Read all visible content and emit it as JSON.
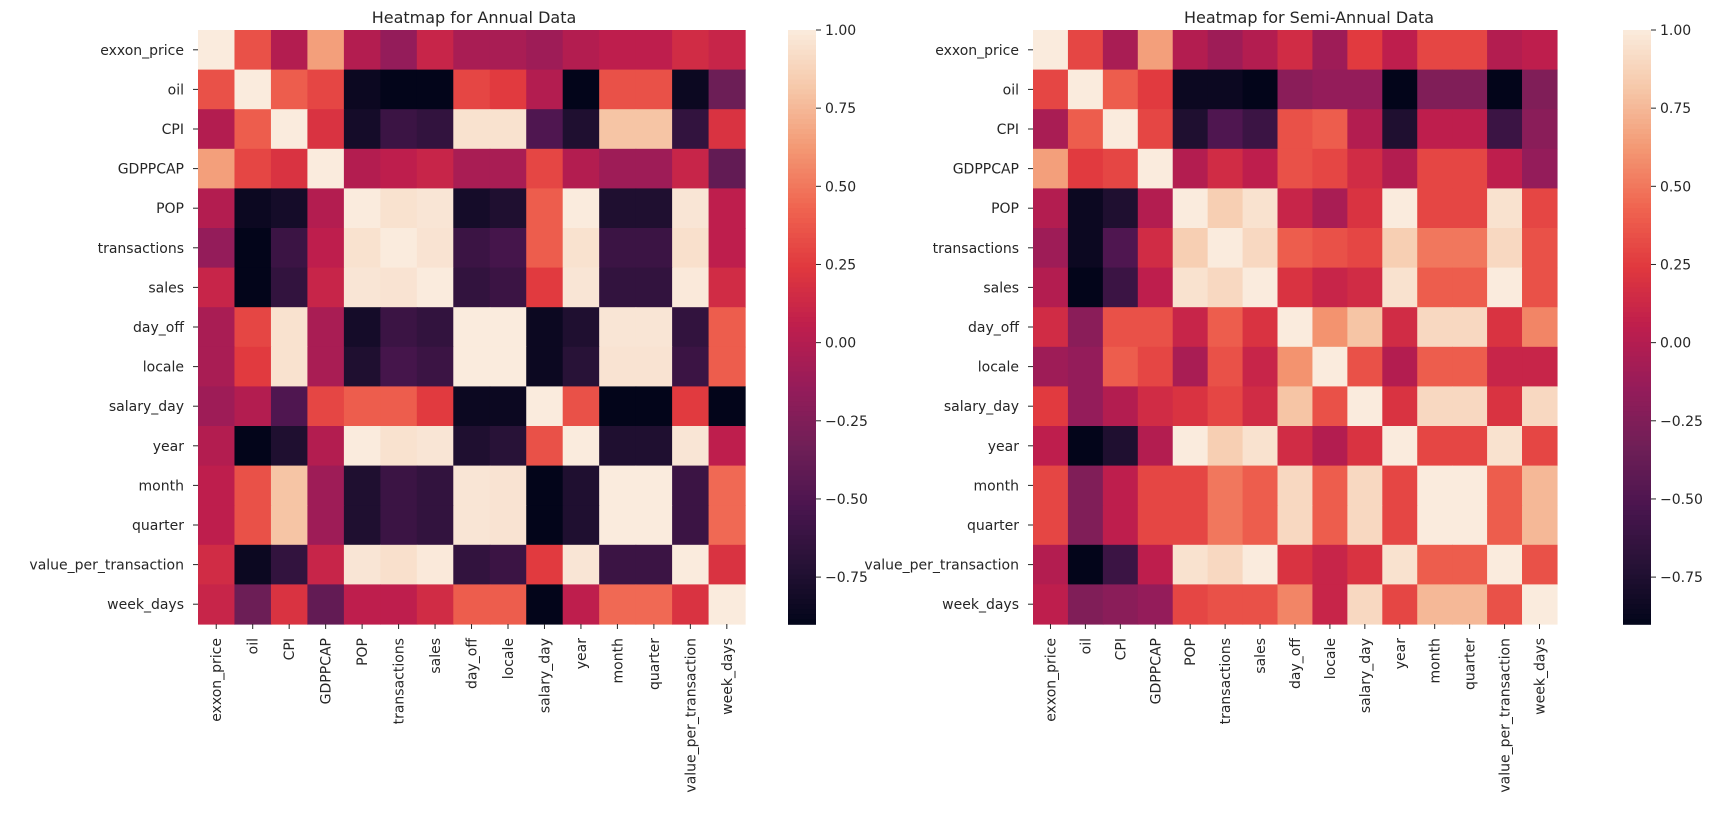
{
  "chart_data": [
    {
      "type": "heatmap",
      "title": "Heatmap for Annual Data",
      "variables": [
        "exxon_price",
        "oil",
        "CPI",
        "GDPPCAP",
        "POP",
        "transactions",
        "sales",
        "day_off",
        "locale",
        "salary_day",
        "year",
        "month",
        "quarter",
        "value_per_transaction",
        "week_days"
      ],
      "colorbar": {
        "ticks": [
          1.0,
          0.75,
          0.5,
          0.25,
          0.0,
          -0.25,
          -0.5,
          -0.75
        ],
        "tick_labels": [
          "1.00",
          "0.75",
          "0.50",
          "0.25",
          "0.00",
          "−0.25",
          "−0.50",
          "−0.75"
        ],
        "range": [
          -0.9,
          1.0
        ]
      },
      "matrix": [
        [
          1.0,
          0.35,
          0.0,
          0.65,
          0.0,
          -0.15,
          0.1,
          -0.05,
          -0.05,
          -0.1,
          0.0,
          0.05,
          0.05,
          0.15,
          0.1
        ],
        [
          0.35,
          1.0,
          0.4,
          0.3,
          -0.85,
          -0.9,
          -0.9,
          0.3,
          0.25,
          0.0,
          -0.9,
          0.35,
          0.35,
          -0.85,
          -0.35
        ],
        [
          0.0,
          0.4,
          1.0,
          0.2,
          -0.8,
          -0.6,
          -0.65,
          0.95,
          0.95,
          -0.5,
          -0.75,
          0.8,
          0.8,
          -0.65,
          0.2
        ],
        [
          0.65,
          0.3,
          0.2,
          1.0,
          0.0,
          0.05,
          0.1,
          -0.05,
          -0.05,
          0.3,
          0.0,
          -0.1,
          -0.1,
          0.1,
          -0.4
        ],
        [
          0.0,
          -0.85,
          -0.8,
          0.0,
          1.0,
          0.95,
          0.97,
          -0.8,
          -0.75,
          0.4,
          1.0,
          -0.75,
          -0.75,
          0.97,
          0.05
        ],
        [
          -0.15,
          -0.9,
          -0.6,
          0.05,
          0.95,
          1.0,
          0.96,
          -0.6,
          -0.55,
          0.4,
          0.95,
          -0.6,
          -0.6,
          0.94,
          0.05
        ],
        [
          0.1,
          -0.9,
          -0.65,
          0.1,
          0.97,
          0.96,
          1.0,
          -0.65,
          -0.6,
          0.25,
          0.97,
          -0.65,
          -0.65,
          0.99,
          0.15
        ],
        [
          -0.05,
          0.3,
          0.95,
          -0.05,
          -0.8,
          -0.6,
          -0.65,
          1.0,
          1.0,
          -0.85,
          -0.75,
          0.97,
          0.97,
          -0.65,
          0.4
        ],
        [
          -0.05,
          0.25,
          0.95,
          -0.05,
          -0.75,
          -0.55,
          -0.6,
          1.0,
          1.0,
          -0.85,
          -0.7,
          0.96,
          0.96,
          -0.6,
          0.4
        ],
        [
          -0.1,
          0.0,
          -0.5,
          0.3,
          0.4,
          0.4,
          0.25,
          -0.85,
          -0.85,
          1.0,
          0.35,
          -0.9,
          -0.9,
          0.25,
          -0.9
        ],
        [
          0.0,
          -0.9,
          -0.75,
          0.0,
          1.0,
          0.95,
          0.97,
          -0.75,
          -0.7,
          0.35,
          1.0,
          -0.75,
          -0.75,
          0.97,
          0.05
        ],
        [
          0.05,
          0.35,
          0.8,
          -0.1,
          -0.75,
          -0.6,
          -0.65,
          0.97,
          0.96,
          -0.9,
          -0.75,
          1.0,
          1.0,
          -0.6,
          0.45
        ],
        [
          0.05,
          0.35,
          0.8,
          -0.1,
          -0.75,
          -0.6,
          -0.65,
          0.97,
          0.96,
          -0.9,
          -0.75,
          1.0,
          1.0,
          -0.6,
          0.45
        ],
        [
          0.15,
          -0.85,
          -0.65,
          0.1,
          0.97,
          0.94,
          0.99,
          -0.65,
          -0.6,
          0.25,
          0.97,
          -0.6,
          -0.6,
          1.0,
          0.2
        ],
        [
          0.1,
          -0.35,
          0.2,
          -0.4,
          0.05,
          0.05,
          0.15,
          0.4,
          0.4,
          -0.9,
          0.05,
          0.45,
          0.45,
          0.2,
          1.0
        ]
      ]
    },
    {
      "type": "heatmap",
      "title": "Heatmap for Semi-Annual Data",
      "variables": [
        "exxon_price",
        "oil",
        "CPI",
        "GDPPCAP",
        "POP",
        "transactions",
        "sales",
        "day_off",
        "locale",
        "salary_day",
        "year",
        "month",
        "quarter",
        "value_per_transaction",
        "week_days"
      ],
      "colorbar": {
        "ticks": [
          1.0,
          0.75,
          0.5,
          0.25,
          0.0,
          -0.25,
          -0.5,
          -0.75
        ],
        "tick_labels": [
          "1.00",
          "0.75",
          "0.50",
          "0.25",
          "0.00",
          "−0.25",
          "−0.50",
          "−0.75"
        ],
        "range": [
          -0.9,
          1.0
        ]
      },
      "matrix": [
        [
          1.0,
          0.3,
          -0.05,
          0.65,
          0.0,
          -0.1,
          0.0,
          0.15,
          -0.1,
          0.25,
          0.05,
          0.3,
          0.3,
          0.0,
          0.05
        ],
        [
          0.3,
          1.0,
          0.4,
          0.25,
          -0.85,
          -0.85,
          -0.9,
          -0.2,
          -0.15,
          -0.15,
          -0.9,
          -0.25,
          -0.25,
          -0.9,
          -0.25
        ],
        [
          -0.05,
          0.4,
          1.0,
          0.3,
          -0.75,
          -0.5,
          -0.6,
          0.35,
          0.4,
          0.0,
          -0.75,
          0.05,
          0.05,
          -0.6,
          -0.2
        ],
        [
          0.65,
          0.25,
          0.3,
          1.0,
          0.0,
          0.15,
          0.05,
          0.35,
          0.3,
          0.15,
          0.0,
          0.3,
          0.3,
          0.05,
          -0.15
        ],
        [
          0.0,
          -0.85,
          -0.75,
          0.0,
          1.0,
          0.85,
          0.95,
          0.1,
          -0.05,
          0.2,
          1.0,
          0.3,
          0.3,
          0.95,
          0.3
        ],
        [
          -0.1,
          -0.85,
          -0.5,
          0.15,
          0.85,
          1.0,
          0.9,
          0.4,
          0.35,
          0.3,
          0.85,
          0.5,
          0.5,
          0.9,
          0.35
        ],
        [
          0.0,
          -0.9,
          -0.6,
          0.05,
          0.95,
          0.9,
          1.0,
          0.2,
          0.1,
          0.15,
          0.95,
          0.4,
          0.4,
          1.0,
          0.35
        ],
        [
          0.15,
          -0.2,
          0.35,
          0.35,
          0.1,
          0.4,
          0.2,
          1.0,
          0.6,
          0.8,
          0.15,
          0.9,
          0.9,
          0.2,
          0.55
        ],
        [
          -0.1,
          -0.15,
          0.4,
          0.3,
          -0.05,
          0.35,
          0.1,
          0.6,
          1.0,
          0.35,
          0.0,
          0.4,
          0.4,
          0.1,
          0.1
        ],
        [
          0.25,
          -0.15,
          0.0,
          0.15,
          0.2,
          0.3,
          0.15,
          0.8,
          0.35,
          1.0,
          0.2,
          0.9,
          0.9,
          0.2,
          0.9
        ],
        [
          0.05,
          -0.9,
          -0.75,
          0.0,
          1.0,
          0.85,
          0.95,
          0.15,
          0.0,
          0.2,
          1.0,
          0.3,
          0.3,
          0.95,
          0.3
        ],
        [
          0.3,
          -0.25,
          0.05,
          0.3,
          0.3,
          0.5,
          0.4,
          0.9,
          0.4,
          0.9,
          0.3,
          1.0,
          1.0,
          0.4,
          0.75
        ],
        [
          0.3,
          -0.25,
          0.05,
          0.3,
          0.3,
          0.5,
          0.4,
          0.9,
          0.4,
          0.9,
          0.3,
          1.0,
          1.0,
          0.4,
          0.75
        ],
        [
          0.0,
          -0.9,
          -0.6,
          0.05,
          0.95,
          0.9,
          1.0,
          0.2,
          0.1,
          0.2,
          0.95,
          0.4,
          0.4,
          1.0,
          0.35
        ],
        [
          0.05,
          -0.25,
          -0.2,
          -0.15,
          0.3,
          0.35,
          0.35,
          0.55,
          0.1,
          0.9,
          0.3,
          0.75,
          0.75,
          0.35,
          1.0
        ]
      ]
    }
  ]
}
